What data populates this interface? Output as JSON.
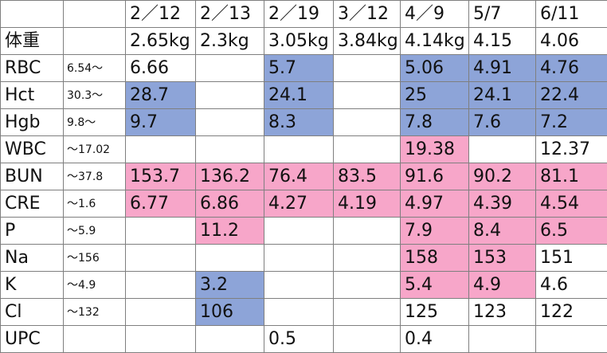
{
  "colors": {
    "low": "#8da4d8",
    "high": "#f7a6c9"
  },
  "dates": [
    "2／12",
    "2／13",
    "2／19",
    "3／12",
    "4／9",
    "5/7",
    "6/11"
  ],
  "weight_row": {
    "label": "体重",
    "values": [
      "2.65kg",
      "2.3kg",
      "3.05kg",
      "3.84kg",
      "4.14kg",
      "4.15",
      "4.06"
    ]
  },
  "rows": [
    {
      "name": "RBC",
      "ref": "6.54～",
      "cells": [
        {
          "v": "6.66",
          "f": ""
        },
        {
          "v": "",
          "f": ""
        },
        {
          "v": "5.7",
          "f": "low"
        },
        {
          "v": "",
          "f": ""
        },
        {
          "v": "5.06",
          "f": "low"
        },
        {
          "v": "4.91",
          "f": "low"
        },
        {
          "v": "4.76",
          "f": "low"
        }
      ]
    },
    {
      "name": "Hct",
      "ref": "30.3～",
      "cells": [
        {
          "v": "28.7",
          "f": "low"
        },
        {
          "v": "",
          "f": ""
        },
        {
          "v": "24.1",
          "f": "low"
        },
        {
          "v": "",
          "f": ""
        },
        {
          "v": "25",
          "f": "low"
        },
        {
          "v": "24.1",
          "f": "low"
        },
        {
          "v": "22.4",
          "f": "low"
        }
      ]
    },
    {
      "name": "Hgb",
      "ref": "9.8～",
      "cells": [
        {
          "v": "9.7",
          "f": "low"
        },
        {
          "v": "",
          "f": ""
        },
        {
          "v": "8.3",
          "f": "low"
        },
        {
          "v": "",
          "f": ""
        },
        {
          "v": "7.8",
          "f": "low"
        },
        {
          "v": "7.6",
          "f": "low"
        },
        {
          "v": "7.2",
          "f": "low"
        }
      ]
    },
    {
      "name": "WBC",
      "ref": "～17.02",
      "cells": [
        {
          "v": "",
          "f": ""
        },
        {
          "v": "",
          "f": ""
        },
        {
          "v": "",
          "f": ""
        },
        {
          "v": "",
          "f": ""
        },
        {
          "v": "19.38",
          "f": "high"
        },
        {
          "v": "",
          "f": ""
        },
        {
          "v": "12.37",
          "f": ""
        }
      ]
    },
    {
      "name": "BUN",
      "ref": "～37.8",
      "cells": [
        {
          "v": "153.7",
          "f": "high"
        },
        {
          "v": "136.2",
          "f": "high"
        },
        {
          "v": "76.4",
          "f": "high"
        },
        {
          "v": "83.5",
          "f": "high"
        },
        {
          "v": "91.6",
          "f": "high"
        },
        {
          "v": "90.2",
          "f": "high"
        },
        {
          "v": "81.1",
          "f": "high"
        }
      ]
    },
    {
      "name": "CRE",
      "ref": "～1.6",
      "cells": [
        {
          "v": "6.77",
          "f": "high"
        },
        {
          "v": "6.86",
          "f": "high"
        },
        {
          "v": "4.27",
          "f": "high"
        },
        {
          "v": "4.19",
          "f": "high"
        },
        {
          "v": "4.97",
          "f": "high"
        },
        {
          "v": "4.39",
          "f": "high"
        },
        {
          "v": "4.54",
          "f": "high"
        }
      ]
    },
    {
      "name": "P",
      "ref": "～5.9",
      "cells": [
        {
          "v": "",
          "f": ""
        },
        {
          "v": "11.2",
          "f": "high"
        },
        {
          "v": "",
          "f": ""
        },
        {
          "v": "",
          "f": ""
        },
        {
          "v": "7.9",
          "f": "high"
        },
        {
          "v": "8.4",
          "f": "high"
        },
        {
          "v": "6.5",
          "f": "high"
        }
      ]
    },
    {
      "name": "Na",
      "ref": "～156",
      "cells": [
        {
          "v": "",
          "f": ""
        },
        {
          "v": "",
          "f": ""
        },
        {
          "v": "",
          "f": ""
        },
        {
          "v": "",
          "f": ""
        },
        {
          "v": "158",
          "f": "high"
        },
        {
          "v": "153",
          "f": "high"
        },
        {
          "v": "151",
          "f": ""
        }
      ]
    },
    {
      "name": "K",
      "ref": "～4.9",
      "cells": [
        {
          "v": "",
          "f": ""
        },
        {
          "v": "3.2",
          "f": "low"
        },
        {
          "v": "",
          "f": ""
        },
        {
          "v": "",
          "f": ""
        },
        {
          "v": "5.4",
          "f": "high"
        },
        {
          "v": "4.9",
          "f": "high"
        },
        {
          "v": "4.6",
          "f": ""
        }
      ]
    },
    {
      "name": "Cl",
      "ref": "～132",
      "cells": [
        {
          "v": "",
          "f": ""
        },
        {
          "v": "106",
          "f": "low"
        },
        {
          "v": "",
          "f": ""
        },
        {
          "v": "",
          "f": ""
        },
        {
          "v": "125",
          "f": ""
        },
        {
          "v": "123",
          "f": ""
        },
        {
          "v": "122",
          "f": ""
        }
      ]
    },
    {
      "name": "UPC",
      "ref": "",
      "cells": [
        {
          "v": "",
          "f": ""
        },
        {
          "v": "",
          "f": ""
        },
        {
          "v": "0.5",
          "f": ""
        },
        {
          "v": "",
          "f": ""
        },
        {
          "v": "0.4",
          "f": ""
        },
        {
          "v": "",
          "f": ""
        },
        {
          "v": "",
          "f": ""
        }
      ]
    }
  ]
}
